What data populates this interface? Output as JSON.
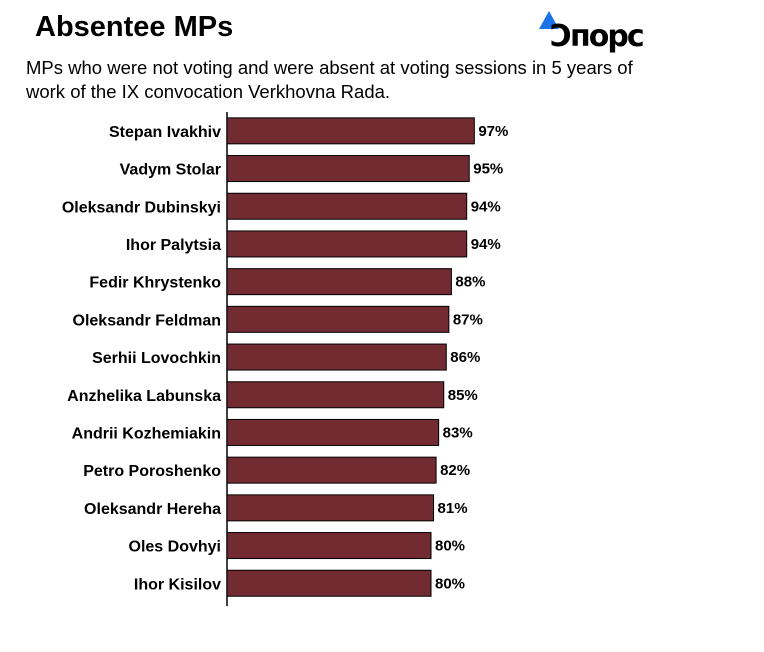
{
  "header": {
    "title": "Absentee MPs",
    "subtitle": "MPs who were not voting and were absent at voting sessions in 5 years of work of the IX convocation Verkhovna Rada.",
    "logo_text": "Ɔпорᴄ",
    "logo_icon": "triangle-icon",
    "logo_accent_color": "#1a73e8"
  },
  "chart_data": {
    "type": "bar",
    "orientation": "horizontal",
    "categories": [
      "Stepan Ivakhiv",
      "Vadym Stolar",
      "Oleksandr Dubinskyi",
      "Ihor Palytsia",
      "Fedir Khrystenko",
      "Oleksandr Feldman",
      "Serhii Lovochkin",
      "Anzhelika Labunska",
      "Andrii Kozhemiakin",
      "Petro Poroshenko",
      "Oleksandr Hereha",
      "Oles Dovhyi",
      "Ihor Kisilov"
    ],
    "values": [
      97,
      95,
      94,
      94,
      88,
      87,
      86,
      85,
      83,
      82,
      81,
      80,
      80
    ],
    "value_labels": [
      "97%",
      "95%",
      "94%",
      "94%",
      "88%",
      "87%",
      "86%",
      "85%",
      "83%",
      "82%",
      "81%",
      "80%",
      "80%"
    ],
    "xlim": [
      0,
      100
    ],
    "bar_color": "#722b30",
    "grid": false,
    "legend": "none"
  }
}
